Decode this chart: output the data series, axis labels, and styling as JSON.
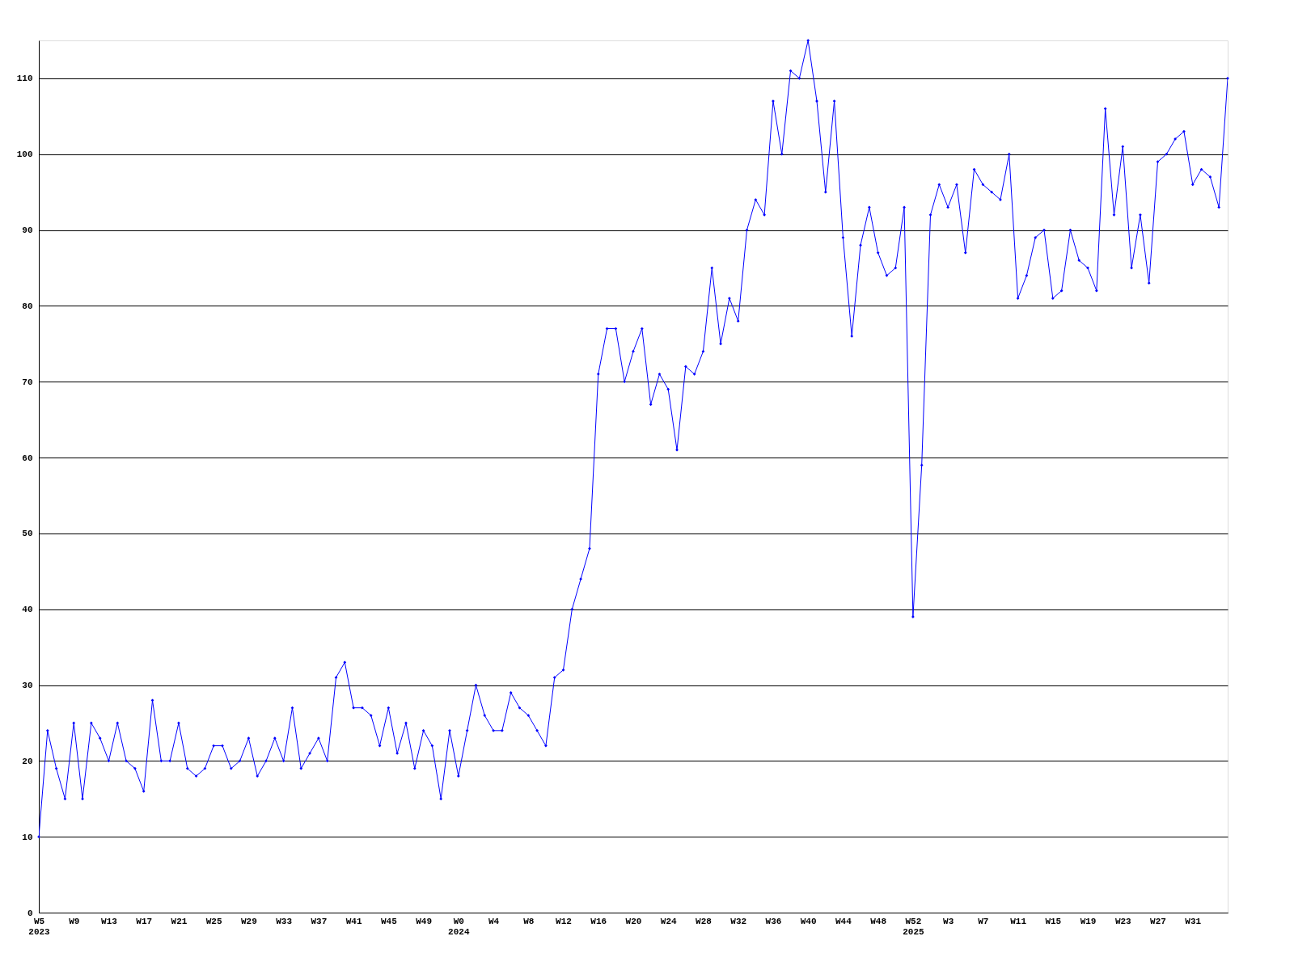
{
  "chart_data": {
    "type": "line",
    "categories": [
      "W5\n2023",
      null,
      null,
      null,
      "W9",
      null,
      null,
      null,
      "W13",
      null,
      null,
      null,
      "W17",
      null,
      null,
      null,
      "W21",
      null,
      null,
      null,
      "W25",
      null,
      null,
      null,
      "W29",
      null,
      null,
      null,
      "W33",
      null,
      null,
      null,
      "W37",
      null,
      null,
      null,
      "W41",
      null,
      null,
      null,
      "W45",
      null,
      null,
      null,
      "W49",
      null,
      null,
      null,
      "W0\n2024",
      null,
      null,
      null,
      "W4",
      null,
      null,
      null,
      "W8",
      null,
      null,
      null,
      "W12",
      null,
      null,
      null,
      "W16",
      null,
      null,
      null,
      "W20",
      null,
      null,
      null,
      "W24",
      null,
      null,
      null,
      "W28",
      null,
      null,
      null,
      "W32",
      null,
      null,
      null,
      "W36",
      null,
      null,
      null,
      "W40",
      null,
      null,
      null,
      "W44",
      null,
      null,
      null,
      "W48",
      null,
      null,
      null,
      "W52\n2025",
      null,
      null,
      null,
      "W3",
      null,
      null,
      null,
      "W7",
      null,
      null,
      null,
      "W11",
      null,
      null,
      null,
      "W15",
      null,
      null,
      null,
      "W19",
      null,
      null,
      null,
      "W23",
      null,
      null,
      null,
      "W27",
      null,
      null,
      null,
      "W31",
      null,
      null,
      null,
      null
    ],
    "series": [
      {
        "color": "#0000ff",
        "values": [
          10,
          24,
          19,
          15,
          25,
          15,
          25,
          23,
          20,
          25,
          20,
          19,
          16,
          28,
          20,
          20,
          25,
          19,
          18,
          19,
          22,
          22,
          19,
          20,
          23,
          18,
          20,
          23,
          20,
          27,
          19,
          21,
          23,
          20,
          31,
          33,
          27,
          27,
          26,
          22,
          27,
          21,
          25,
          19,
          24,
          22,
          15,
          24,
          18,
          24,
          30,
          26,
          24,
          24,
          29,
          27,
          26,
          24,
          22,
          31,
          32,
          40,
          44,
          48,
          71,
          77,
          77,
          70,
          74,
          77,
          67,
          71,
          69,
          61,
          72,
          71,
          74,
          85,
          75,
          81,
          78,
          90,
          94,
          92,
          107,
          100,
          111,
          110,
          115,
          107,
          95,
          107,
          89,
          76,
          88,
          93,
          87,
          84,
          85,
          93,
          39,
          59,
          92,
          96,
          93,
          96,
          87,
          98,
          96,
          95,
          94,
          100,
          81,
          84,
          89,
          90,
          81,
          82,
          90,
          86,
          85,
          82,
          106,
          92,
          101,
          85,
          92,
          83,
          99,
          100,
          102,
          103,
          96,
          98,
          97,
          93,
          110
        ]
      }
    ],
    "ylim": [
      0,
      115
    ],
    "yticks": [
      0,
      10,
      20,
      30,
      40,
      50,
      60,
      70,
      80,
      90,
      100,
      110
    ],
    "grid": "y",
    "marker": "diamond",
    "line_style": "solid"
  }
}
